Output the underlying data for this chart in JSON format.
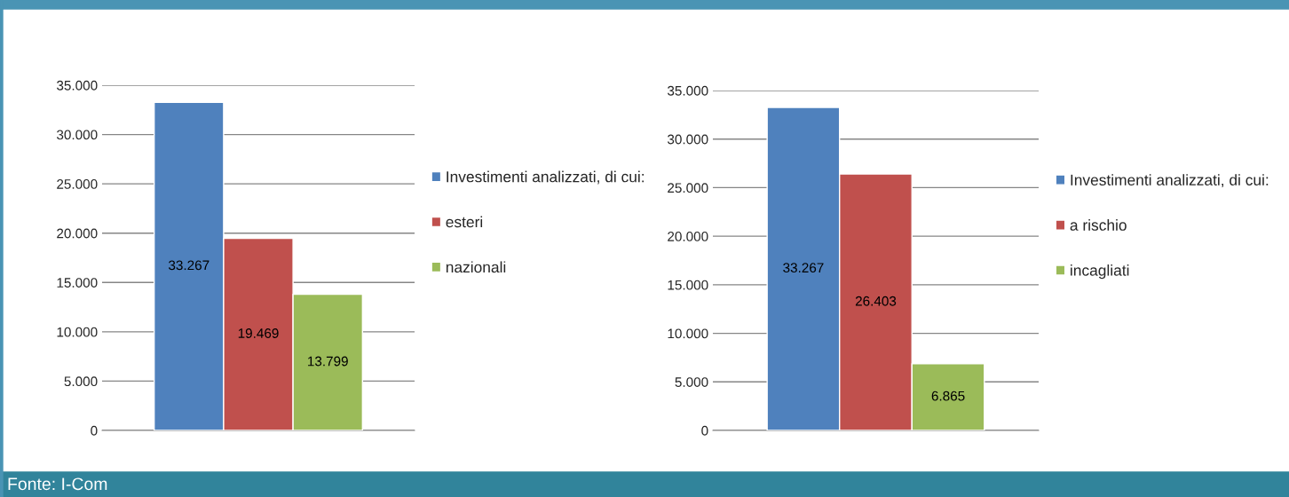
{
  "chart_data": [
    {
      "type": "bar",
      "categories": [
        null
      ],
      "series": [
        {
          "name": "Investimenti analizzati, di cui:",
          "color": "#4f81bd",
          "values": [
            33267
          ],
          "value_labels": [
            "33.267"
          ]
        },
        {
          "name": "esteri",
          "color": "#c0504d",
          "values": [
            19469
          ],
          "value_labels": [
            "19.469"
          ]
        },
        {
          "name": "nazionali",
          "color": "#9bbb59",
          "values": [
            13799
          ],
          "value_labels": [
            "13.799"
          ]
        }
      ],
      "ylim": [
        0,
        35000
      ],
      "yticks": [
        {
          "value": 0,
          "label": "0"
        },
        {
          "value": 5000,
          "label": "5.000"
        },
        {
          "value": 10000,
          "label": "10.000"
        },
        {
          "value": 15000,
          "label": "15.000"
        },
        {
          "value": 20000,
          "label": "20.000"
        },
        {
          "value": 25000,
          "label": "25.000"
        },
        {
          "value": 30000,
          "label": "30.000"
        },
        {
          "value": 35000,
          "label": "35.000"
        }
      ],
      "grid": "y",
      "legend": "right",
      "annotations": [
        "Fonte: I-Com"
      ]
    },
    {
      "type": "bar",
      "categories": [
        null
      ],
      "series": [
        {
          "name": "Investimenti analizzati, di cui:",
          "color": "#4f81bd",
          "values": [
            33267
          ],
          "value_labels": [
            "33.267"
          ]
        },
        {
          "name": "a rischio",
          "color": "#c0504d",
          "values": [
            26403
          ],
          "value_labels": [
            "26.403"
          ]
        },
        {
          "name": "incagliati",
          "color": "#9bbb59",
          "values": [
            6865
          ],
          "value_labels": [
            "6.865"
          ]
        }
      ],
      "ylim": [
        0,
        35000
      ],
      "yticks": [
        {
          "value": 0,
          "label": "0"
        },
        {
          "value": 5000,
          "label": "5.000"
        },
        {
          "value": 10000,
          "label": "10.000"
        },
        {
          "value": 15000,
          "label": "15.000"
        },
        {
          "value": 20000,
          "label": "20.000"
        },
        {
          "value": 25000,
          "label": "25.000"
        },
        {
          "value": 30000,
          "label": "30.000"
        },
        {
          "value": 35000,
          "label": "35.000"
        }
      ],
      "grid": "y",
      "legend": "right"
    }
  ]
}
